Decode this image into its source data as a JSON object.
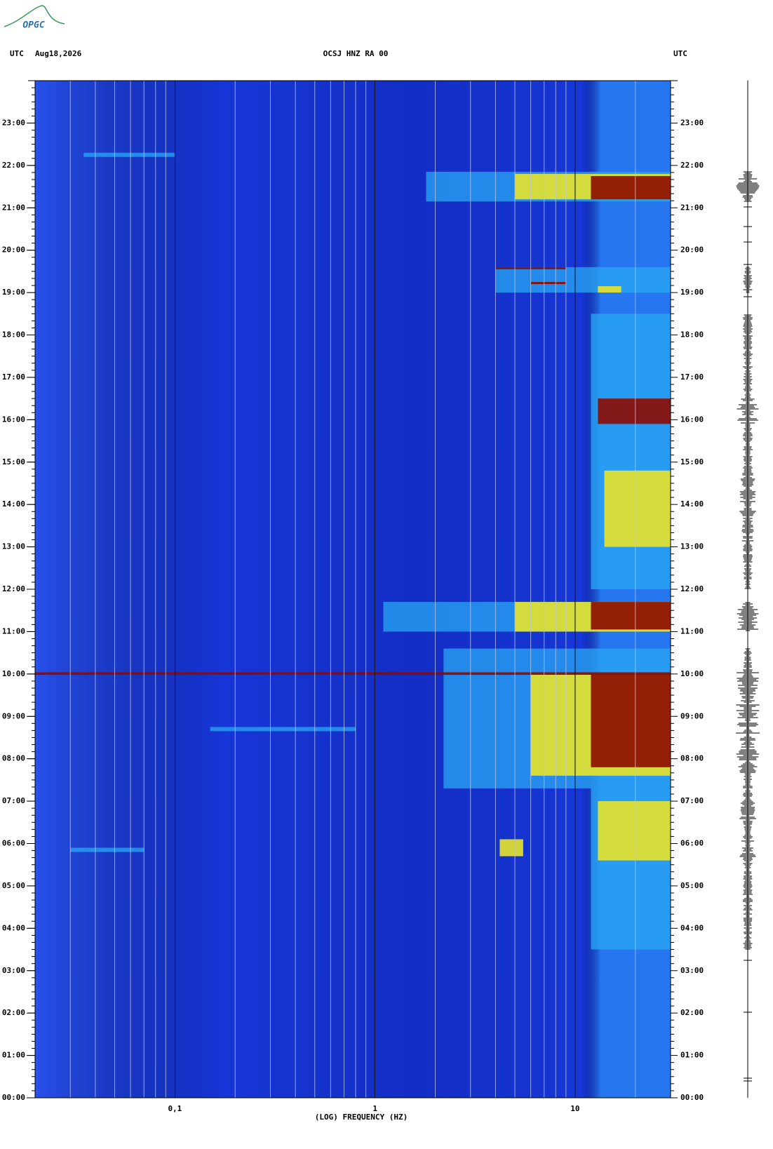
{
  "logo": "OPGC",
  "chart_data": {
    "type": "spectrogram",
    "title": "OCSJ HNZ RA 00",
    "left_label": "UTC",
    "date": "Aug18,2026",
    "right_label": "UTC",
    "xlabel": "(LOG) FREQUENCY (HZ)",
    "xscale": "log",
    "xlim": [
      0.02,
      30
    ],
    "xticks": [
      {
        "value": 0.1,
        "label": "0,1"
      },
      1,
      10
    ],
    "ylim": [
      0,
      24
    ],
    "yticks": [
      {
        "value": 0,
        "label": "00:00"
      },
      {
        "value": 1,
        "label": "01:00"
      },
      {
        "value": 2,
        "label": "02:00"
      },
      {
        "value": 3,
        "label": "03:00"
      },
      {
        "value": 4,
        "label": "04:00"
      },
      {
        "value": 5,
        "label": "05:00"
      },
      {
        "value": 6,
        "label": "06:00"
      },
      {
        "value": 7,
        "label": "07:00"
      },
      {
        "value": 8,
        "label": "08:00"
      },
      {
        "value": 9,
        "label": "09:00"
      },
      {
        "value": 10,
        "label": "10:00"
      },
      {
        "value": 11,
        "label": "11:00"
      },
      {
        "value": 12,
        "label": "12:00"
      },
      {
        "value": 13,
        "label": "13:00"
      },
      {
        "value": 14,
        "label": "14:00"
      },
      {
        "value": 15,
        "label": "15:00"
      },
      {
        "value": 16,
        "label": "16:00"
      },
      {
        "value": 17,
        "label": "17:00"
      },
      {
        "value": 18,
        "label": "18:00"
      },
      {
        "value": 19,
        "label": "19:00"
      },
      {
        "value": 20,
        "label": "20:00"
      },
      {
        "value": 21,
        "label": "21:00"
      },
      {
        "value": 22,
        "label": "22:00"
      },
      {
        "value": 23,
        "label": "23:00"
      }
    ],
    "grid": true,
    "background": "#1636d8",
    "colors": [
      "#2aa8f4",
      "#e8e42a",
      "#8c0a00"
    ],
    "bands": [
      {
        "start": 21.15,
        "end": 21.85,
        "fmin": 1.8,
        "fmax": 30,
        "level": 0
      },
      {
        "start": 21.2,
        "end": 21.8,
        "fmin": 5,
        "fmax": 30,
        "level": 1
      },
      {
        "start": 21.2,
        "end": 21.75,
        "fmin": 12,
        "fmax": 30,
        "level": 2
      },
      {
        "start": 22.2,
        "end": 22.3,
        "fmin": 0.035,
        "fmax": 0.1,
        "level": 0
      },
      {
        "start": 19.0,
        "end": 19.6,
        "fmin": 4,
        "fmax": 30,
        "level": 0
      },
      {
        "start": 19.55,
        "end": 19.6,
        "fmin": 4,
        "fmax": 9,
        "level": 2
      },
      {
        "start": 19.2,
        "end": 19.25,
        "fmin": 6,
        "fmax": 9,
        "level": 2
      },
      {
        "start": 19.0,
        "end": 19.15,
        "fmin": 13,
        "fmax": 17,
        "level": 1
      },
      {
        "start": 12.0,
        "end": 18.5,
        "fmin": 12,
        "fmax": 30,
        "level": 0
      },
      {
        "start": 15.9,
        "end": 16.5,
        "fmin": 13,
        "fmax": 30,
        "level": 2
      },
      {
        "start": 13.0,
        "end": 14.8,
        "fmin": 14,
        "fmax": 30,
        "level": 1
      },
      {
        "start": 11.0,
        "end": 11.7,
        "fmin": 1.1,
        "fmax": 30,
        "level": 0
      },
      {
        "start": 11.0,
        "end": 11.7,
        "fmin": 5,
        "fmax": 30,
        "level": 1
      },
      {
        "start": 11.05,
        "end": 11.7,
        "fmin": 12,
        "fmax": 30,
        "level": 2
      },
      {
        "start": 7.3,
        "end": 10.6,
        "fmin": 2.2,
        "fmax": 30,
        "level": 0
      },
      {
        "start": 7.6,
        "end": 10.0,
        "fmin": 6,
        "fmax": 30,
        "level": 1
      },
      {
        "start": 7.8,
        "end": 10.0,
        "fmin": 12,
        "fmax": 30,
        "level": 2
      },
      {
        "start": 9.98,
        "end": 10.04,
        "fmin": 0.02,
        "fmax": 30,
        "level": 2
      },
      {
        "start": 8.65,
        "end": 8.75,
        "fmin": 0.15,
        "fmax": 0.8,
        "level": 0
      },
      {
        "start": 3.5,
        "end": 7.3,
        "fmin": 12,
        "fmax": 30,
        "level": 0
      },
      {
        "start": 5.6,
        "end": 7.0,
        "fmin": 13,
        "fmax": 30,
        "level": 1
      },
      {
        "start": 5.7,
        "end": 6.1,
        "fmin": 4.2,
        "fmax": 5.5,
        "level": 1
      },
      {
        "start": 5.8,
        "end": 5.9,
        "fmin": 0.03,
        "fmax": 0.07,
        "level": 0
      }
    ]
  }
}
